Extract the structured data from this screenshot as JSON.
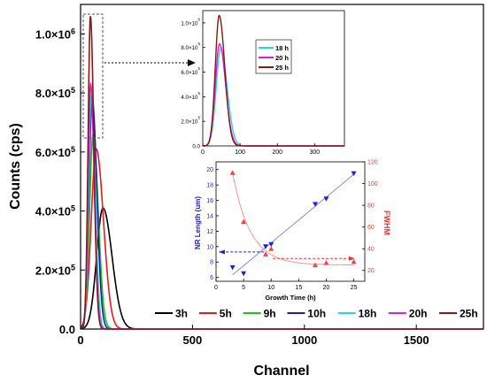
{
  "chart_data": [
    {
      "type": "line",
      "title": "",
      "xlabel": "Channel",
      "ylabel": "Counts (cps)",
      "xlim": [
        0,
        1800
      ],
      "ylim": [
        0,
        1100000
      ],
      "xticks": [
        "0",
        "500",
        "1000",
        "1500"
      ],
      "yticks": [
        "0.0",
        "2.0×10",
        "4.0×10",
        "6.0×10",
        "8.0×10",
        "1.0×10"
      ],
      "ytick_exponent": "5",
      "ytick_exponent_top": "6",
      "legend_position": "bottom-right",
      "series": [
        {
          "name": "3h",
          "color": "#000000",
          "peak_x": 100,
          "peak_y": 410000,
          "width": 35
        },
        {
          "name": "5h",
          "color": "#e8191b",
          "peak_x": 70,
          "peak_y": 610000,
          "width": 28
        },
        {
          "name": "9h",
          "color": "#19c519",
          "peak_x": 56,
          "peak_y": 660000,
          "width": 20
        },
        {
          "name": "10h",
          "color": "#1d1da8",
          "peak_x": 52,
          "peak_y": 780000,
          "width": 18
        },
        {
          "name": "18h",
          "color": "#25d6e6",
          "peak_x": 48,
          "peak_y": 790000,
          "width": 15
        },
        {
          "name": "20h",
          "color": "#df1fd8",
          "peak_x": 45,
          "peak_y": 830000,
          "width": 14
        },
        {
          "name": "25h",
          "color": "#8b1616",
          "peak_x": 44,
          "peak_y": 1060000,
          "width": 13
        }
      ]
    },
    {
      "type": "line",
      "title": "",
      "xlabel": "",
      "ylabel": "",
      "xlim": [
        0,
        380
      ],
      "ylim": [
        0,
        1100000
      ],
      "xticks": [
        "0",
        "100",
        "200",
        "300"
      ],
      "yticks": [
        "0.0",
        "2.0×10",
        "4.0×10",
        "6.0×10",
        "8.0×10",
        "1.0×10"
      ],
      "legend_position": "top-right",
      "series": [
        {
          "name": "18 h",
          "color": "#25d6e6",
          "peak_x": 48,
          "peak_y": 790000,
          "width": 15
        },
        {
          "name": "20 h",
          "color": "#df1fd8",
          "peak_x": 45,
          "peak_y": 830000,
          "width": 14
        },
        {
          "name": "25 h",
          "color": "#8b1616",
          "peak_x": 44,
          "peak_y": 1060000,
          "width": 13
        }
      ]
    },
    {
      "type": "scatter",
      "title": "",
      "xlabel": "Growth Time (h)",
      "ylabel": "NR Length (um)",
      "ylabel2": "FWHM",
      "xlim": [
        0,
        27
      ],
      "ylim": [
        5.5,
        21
      ],
      "ylim2": [
        10,
        120
      ],
      "xticks": [
        "0",
        "5",
        "10",
        "15",
        "20",
        "25"
      ],
      "yticks": [
        "6",
        "8",
        "10",
        "12",
        "14",
        "16",
        "18",
        "20"
      ],
      "yticks2": [
        "20",
        "40",
        "60",
        "80",
        "100",
        "120"
      ],
      "series": [
        {
          "name": "NR Length",
          "color": "#2222cc",
          "marker": "triangle-down",
          "x": [
            3,
            5,
            9,
            10,
            18,
            20,
            25
          ],
          "y": [
            7.3,
            6.5,
            10.0,
            10.3,
            15.5,
            16.2,
            19.5
          ]
        },
        {
          "name": "FWHM",
          "color": "#ee4444",
          "marker": "triangle-up",
          "x": [
            3,
            5,
            9,
            10,
            18,
            20,
            25
          ],
          "y": [
            110,
            65,
            35,
            40,
            25,
            27,
            28
          ]
        }
      ]
    }
  ]
}
